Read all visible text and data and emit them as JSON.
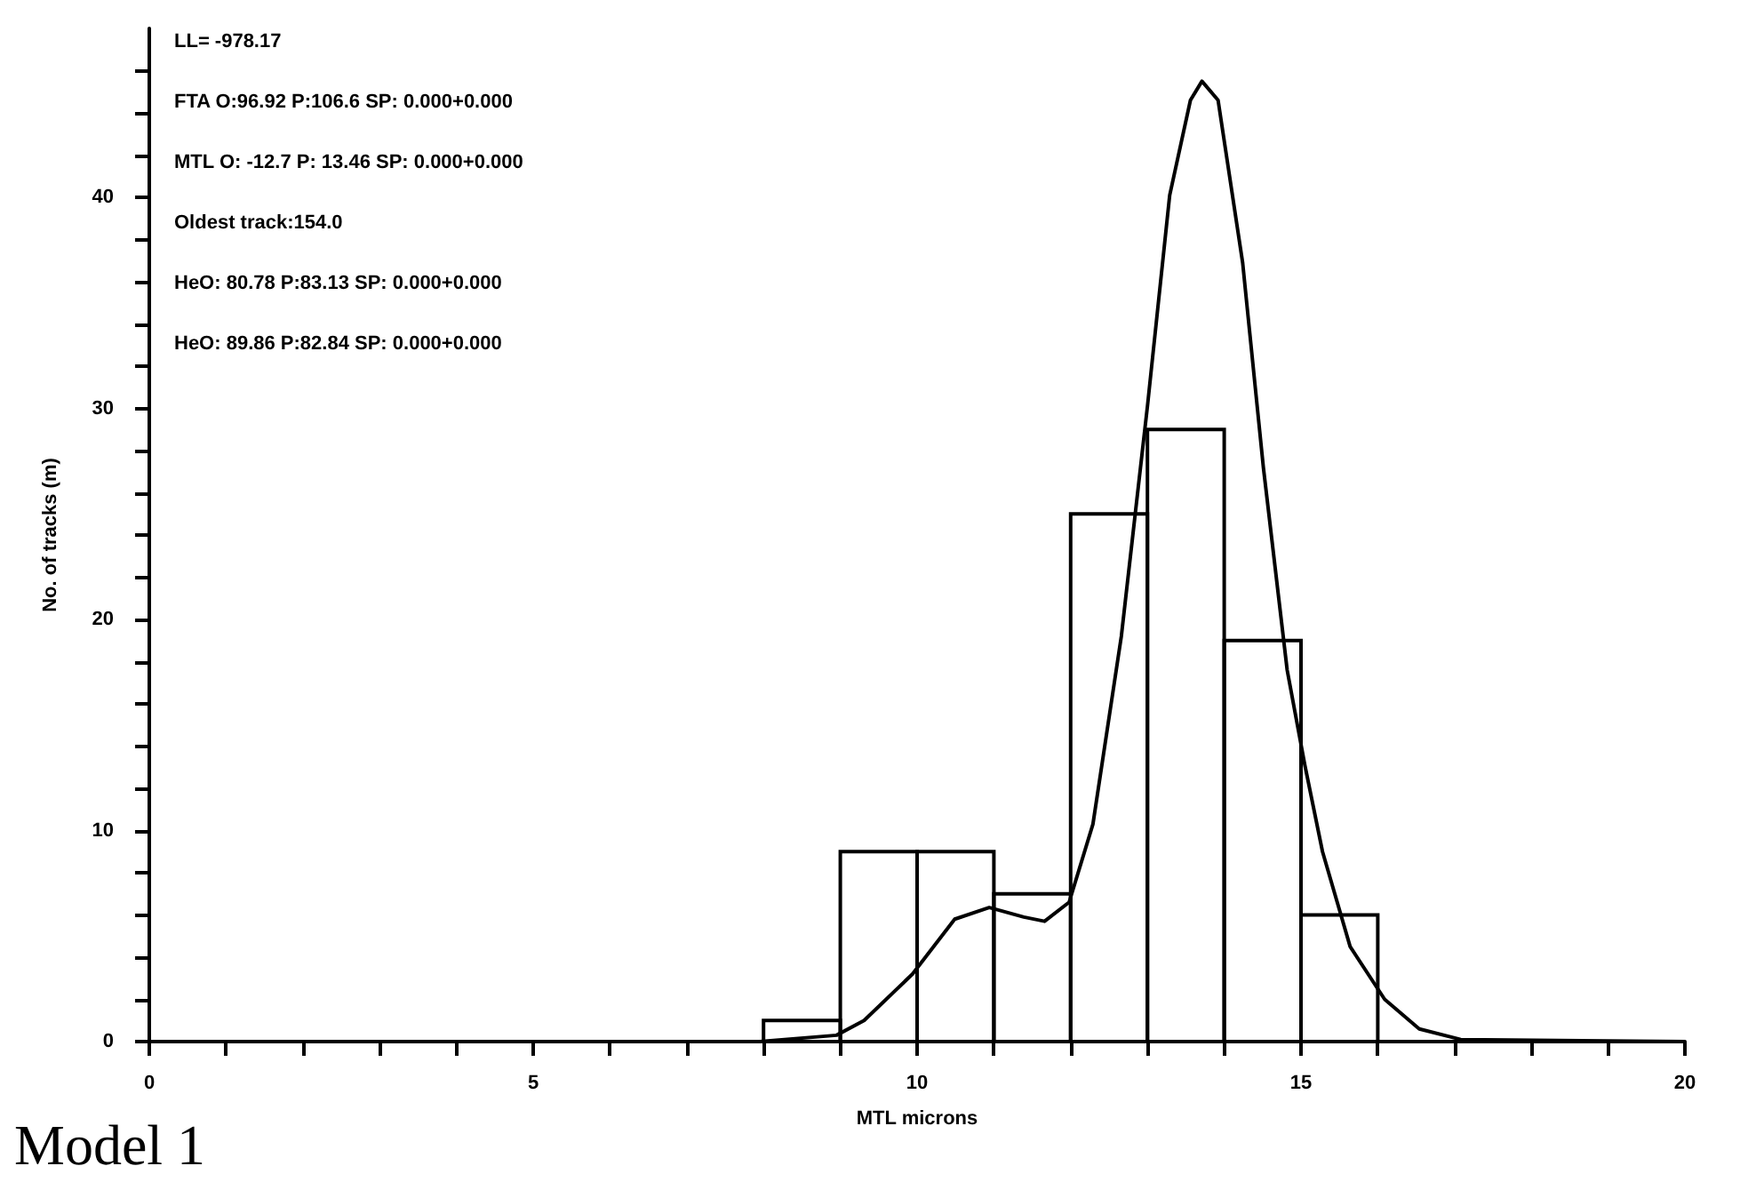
{
  "chart_data": {
    "type": "histogram",
    "xlabel": "MTL microns",
    "ylabel": "No. of tracks (m)",
    "color": "#000000",
    "bins": [
      0,
      1,
      2,
      3,
      4,
      5,
      6,
      7,
      8,
      9,
      10,
      11,
      12,
      13,
      14,
      15,
      16,
      17,
      18,
      19,
      20
    ],
    "values": [
      0,
      0,
      0,
      0,
      0,
      0,
      0,
      0,
      1,
      9,
      9,
      7,
      25,
      29,
      19,
      6,
      0,
      0,
      0,
      0
    ],
    "series": [
      {
        "type": "line",
        "color": "#000000",
        "x": [
          0,
          7.95,
          8.95,
          9.31,
          9.94,
          10.49,
          10.94,
          11.39,
          11.66,
          11.98,
          12.29,
          12.66,
          13.0,
          13.29,
          13.56,
          13.71,
          13.92,
          14.24,
          14.51,
          14.82,
          15.05,
          15.28,
          15.64,
          16.09,
          16.54,
          17.08,
          20
        ],
        "values": [
          0,
          0,
          0.3,
          1.0,
          3.2,
          5.8,
          6.35,
          5.9,
          5.7,
          6.6,
          10.3,
          19.2,
          30.1,
          40.1,
          44.6,
          45.5,
          44.6,
          36.9,
          27.2,
          17.6,
          13.1,
          9.0,
          4.5,
          2.0,
          0.6,
          0.1,
          0
        ]
      }
    ],
    "xlim": [
      0,
      20
    ],
    "ylim": [
      0,
      48
    ],
    "xticks": [
      0,
      {
        "value": 1,
        "label": null
      },
      {
        "value": 2,
        "label": null
      },
      {
        "value": 3,
        "label": null
      },
      {
        "value": 4,
        "label": null
      },
      5,
      {
        "value": 6,
        "label": null
      },
      {
        "value": 7,
        "label": null
      },
      {
        "value": 8,
        "label": null
      },
      {
        "value": 9,
        "label": null
      },
      10,
      {
        "value": 11,
        "label": null
      },
      {
        "value": 12,
        "label": null
      },
      {
        "value": 13,
        "label": null
      },
      {
        "value": 14,
        "label": null
      },
      15,
      {
        "value": 16,
        "label": null
      },
      {
        "value": 17,
        "label": null
      },
      {
        "value": 18,
        "label": null
      },
      {
        "value": 19,
        "label": null
      },
      20
    ],
    "yticks": [
      0,
      {
        "value": 2,
        "label": null
      },
      {
        "value": 4,
        "label": null
      },
      {
        "value": 6,
        "label": null
      },
      {
        "value": 8,
        "label": null
      },
      10,
      {
        "value": 12,
        "label": null
      },
      {
        "value": 14,
        "label": null
      },
      {
        "value": 16,
        "label": null
      },
      {
        "value": 18,
        "label": null
      },
      20,
      {
        "value": 22,
        "label": null
      },
      {
        "value": 24,
        "label": null
      },
      {
        "value": 26,
        "label": null
      },
      {
        "value": 28,
        "label": null
      },
      30,
      {
        "value": 32,
        "label": null
      },
      {
        "value": 34,
        "label": null
      },
      {
        "value": 36,
        "label": null
      },
      {
        "value": 38,
        "label": null
      },
      40,
      {
        "value": 42,
        "label": null
      },
      {
        "value": 44,
        "label": null
      },
      {
        "value": 46,
        "label": null
      }
    ],
    "annotations": [
      "LL= -978.17",
      "FTA O:96.92 P:106.6 SP: 0.000+0.000",
      "MTL O: -12.7 P: 13.46 SP: 0.000+0.000",
      "Oldest track:154.0",
      "HeO: 80.78 P:83.13 SP: 0.000+0.000",
      "HeO: 89.86 P:82.84 SP: 0.000+0.000",
      "Model 1"
    ]
  }
}
